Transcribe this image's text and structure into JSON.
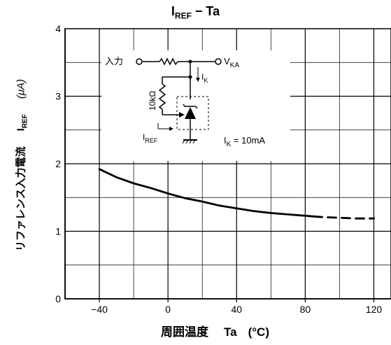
{
  "chart_data": {
    "type": "line",
    "title": {
      "main": "I",
      "sub": "REF",
      "rest": " − Ta"
    },
    "xlabel": {
      "text": "周囲温度",
      "symbol": "Ta",
      "unit": "(°C)"
    },
    "ylabel": {
      "text": "リファレンス入力電流",
      "symbol_main": "I",
      "symbol_sub": "REF",
      "unit": "(μA)"
    },
    "xlim": [
      -60,
      130
    ],
    "ylim": [
      0,
      4
    ],
    "x_ticks": [
      {
        "value": -40,
        "label": "−40"
      },
      {
        "value": 0,
        "label": "0"
      },
      {
        "value": 40,
        "label": "40"
      },
      {
        "value": 80,
        "label": "80"
      },
      {
        "value": 120,
        "label": "120"
      }
    ],
    "y_ticks": [
      {
        "value": 0,
        "label": "0"
      },
      {
        "value": 1,
        "label": "1"
      },
      {
        "value": 2,
        "label": "2"
      },
      {
        "value": 3,
        "label": "3"
      },
      {
        "value": 4,
        "label": "4"
      }
    ],
    "grid": true,
    "series": [
      {
        "style": "solid",
        "x": [
          -40,
          -30,
          -20,
          -10,
          0,
          10,
          20,
          30,
          40,
          50,
          60,
          70,
          80,
          85
        ],
        "y": [
          1.92,
          1.8,
          1.71,
          1.64,
          1.56,
          1.49,
          1.44,
          1.38,
          1.34,
          1.3,
          1.27,
          1.25,
          1.23,
          1.22
        ]
      },
      {
        "style": "dashed",
        "x": [
          85,
          90,
          100,
          110,
          120
        ],
        "y": [
          1.22,
          1.21,
          1.2,
          1.19,
          1.19
        ]
      }
    ],
    "circuit": {
      "input_label": "入力",
      "output_label_main": "V",
      "output_label_sub": "KA",
      "ik_label_main": "I",
      "ik_label_sub": "K",
      "resistor_label": "10kΩ",
      "iref_label_main": "I",
      "iref_label_sub": "REF",
      "condition_main": "I",
      "condition_sub": "K",
      "condition_rest": " = 10mA"
    }
  }
}
